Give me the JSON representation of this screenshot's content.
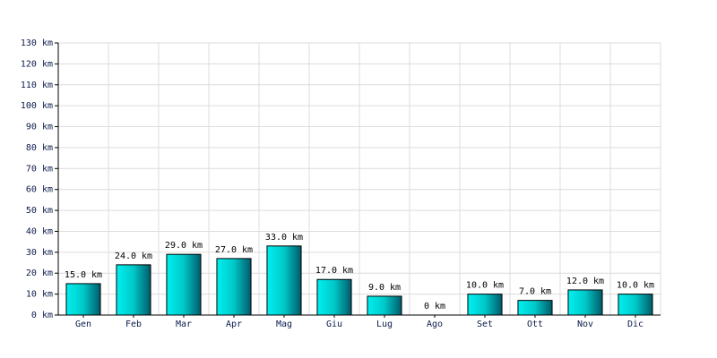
{
  "chart_data": {
    "type": "bar",
    "categories": [
      "Gen",
      "Feb",
      "Mar",
      "Apr",
      "Mag",
      "Giu",
      "Lug",
      "Ago",
      "Set",
      "Ott",
      "Nov",
      "Dic"
    ],
    "values": [
      15,
      24,
      29,
      27,
      33,
      17,
      9,
      0,
      10,
      7,
      12,
      10
    ],
    "value_labels": [
      "15.0 km",
      "24.0 km",
      "29.0 km",
      "27.0 km",
      "33.0 km",
      "17.0 km",
      "9.0 km",
      "0 km",
      "10.0 km",
      "7.0 km",
      "12.0 km",
      "10.0 km"
    ],
    "color": "#00d0d0",
    "ylim": [
      0,
      130
    ],
    "yticks": [
      {
        "value": 0,
        "label": "0 km"
      },
      {
        "value": 10,
        "label": "10 km"
      },
      {
        "value": 20,
        "label": "20 km"
      },
      {
        "value": 30,
        "label": "30 km"
      },
      {
        "value": 40,
        "label": "40 km"
      },
      {
        "value": 50,
        "label": "50 km"
      },
      {
        "value": 60,
        "label": "60 km"
      },
      {
        "value": 70,
        "label": "70 km"
      },
      {
        "value": 80,
        "label": "80 km"
      },
      {
        "value": 90,
        "label": "90 km"
      },
      {
        "value": 100,
        "label": "100 km"
      },
      {
        "value": 110,
        "label": "110 km"
      },
      {
        "value": 120,
        "label": "120 km"
      },
      {
        "value": 130,
        "label": "130 km"
      }
    ],
    "grid": true
  }
}
